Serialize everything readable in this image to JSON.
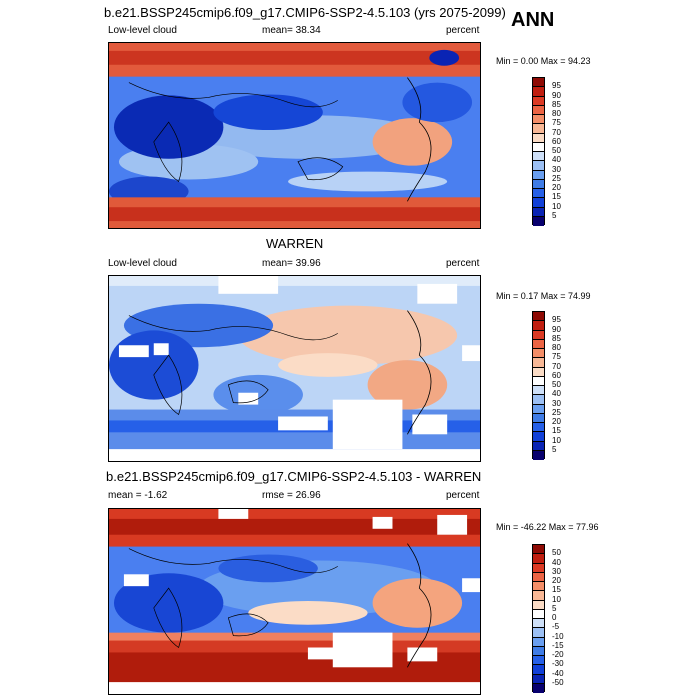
{
  "season": "ANN",
  "colors": {
    "abs_scale": [
      "#08006e",
      "#0a24b4",
      "#1140d8",
      "#2660e8",
      "#3f7ce6",
      "#6a9ff0",
      "#9cc0f4",
      "#cee0f8",
      "#ffffff",
      "#fbdcc6",
      "#f8b896",
      "#f48e68",
      "#ec6444",
      "#dc3a24",
      "#c01e10",
      "#8e0a04"
    ],
    "diff_scale": [
      "#08006e",
      "#0a24b4",
      "#1140d8",
      "#2660e8",
      "#3f7ce6",
      "#6a9ff0",
      "#9cc0f4",
      "#cee0f8",
      "#ffffff",
      "#fbdcc6",
      "#f8b896",
      "#f48e68",
      "#ec6444",
      "#dc3a24",
      "#c01e10",
      "#8e0a04"
    ]
  },
  "panels": [
    {
      "title": "b.e21.BSSP245cmip6.f09_g17.CMIP6-SSP2-4.5.103 (yrs 2075-2099)",
      "left": "Low-level cloud",
      "center": "mean=  38.34",
      "right": "percent",
      "minmax": "Min =   0.00 Max =  94.23",
      "ticks": [
        "95",
        "90",
        "85",
        "80",
        "75",
        "70",
        "60",
        "50",
        "40",
        "30",
        "25",
        "20",
        "15",
        "10",
        "5"
      ]
    },
    {
      "title": "WARREN",
      "left": "Low-level cloud",
      "center": "mean=  39.96",
      "right": "percent",
      "minmax": "Min =   0.17 Max =  74.99",
      "ticks": [
        "95",
        "90",
        "85",
        "80",
        "75",
        "70",
        "60",
        "50",
        "40",
        "30",
        "25",
        "20",
        "15",
        "10",
        "5"
      ]
    },
    {
      "title": "b.e21.BSSP245cmip6.f09_g17.CMIP6-SSP2-4.5.103 - WARREN",
      "left": "mean =  -1.62",
      "center": "rmse =  26.96",
      "right": "percent",
      "minmax": "Min = -46.22 Max =  77.96",
      "ticks": [
        "50",
        "40",
        "30",
        "20",
        "15",
        "10",
        "5",
        "0",
        "-5",
        "-10",
        "-15",
        "-20",
        "-30",
        "-40",
        "-50"
      ]
    }
  ]
}
